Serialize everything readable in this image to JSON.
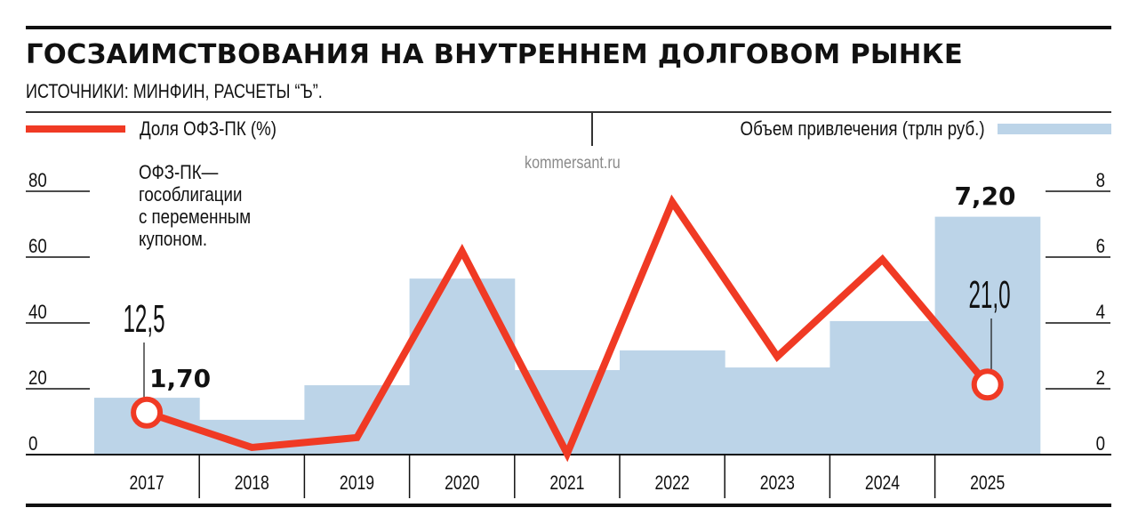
{
  "header": {
    "title": "ГОСЗАИМСТВОВАНИЯ НА ВНУТРЕННЕМ ДОЛГОВОМ РЫНКЕ",
    "subtitle": "ИСТОЧНИКИ: МИНФИН, РАСЧЕТЫ “Ъ”."
  },
  "legend": {
    "line_label": "Доля ОФЗ-ПК (%)",
    "bar_label": "Объем привлечения (трлн руб.)"
  },
  "watermark": "kommersant.ru",
  "note": "ОФЗ-ПК—\nгособлигации\nс переменным\nкупоном.",
  "axes": {
    "left_ticks": [
      "0",
      "20",
      "40",
      "60",
      "80"
    ],
    "right_ticks": [
      "0",
      "2",
      "4",
      "6",
      "8"
    ]
  },
  "callouts": {
    "first_line": "12,5",
    "first_bar": "1,70",
    "last_line": "21,0",
    "last_bar": "7,20"
  },
  "colors": {
    "line": "#f03a24",
    "bar": "#bcd4e8",
    "text": "#111111",
    "watermark": "#8a8a8a"
  },
  "chart_data": {
    "type": "bar",
    "title": "ГОСЗАИМСТВОВАНИЯ НА ВНУТРЕННЕМ ДОЛГОВОМ РЫНКЕ",
    "subtitle": "ИСТОЧНИКИ: МИНФИН, РАСЧЕТЫ “Ъ”.",
    "categories": [
      "2017",
      "2018",
      "2019",
      "2020",
      "2021",
      "2022",
      "2023",
      "2024",
      "2025"
    ],
    "series": [
      {
        "name": "Объем привлечения (трлн руб.)",
        "type": "bar",
        "axis": "right",
        "color": "#bcd4e8",
        "values": [
          1.7,
          1.03,
          2.08,
          5.32,
          2.54,
          3.14,
          2.62,
          4.03,
          7.2
        ]
      },
      {
        "name": "Доля ОФЗ-ПК (%)",
        "type": "line",
        "axis": "left",
        "color": "#f03a24",
        "values": [
          12.5,
          1.9,
          4.9,
          61.5,
          0.0,
          76.5,
          29.5,
          59.0,
          21.0
        ]
      }
    ],
    "xlabel": "",
    "ylabel_left": "Доля ОФЗ-ПК (%)",
    "ylabel_right": "Объем привлечения (трлн руб.)",
    "ylim_left": [
      0,
      80
    ],
    "ylim_right": [
      0,
      8
    ],
    "left_ticks": [
      0,
      20,
      40,
      60,
      80
    ],
    "right_ticks": [
      0,
      2,
      4,
      6,
      8
    ],
    "annotations": [
      {
        "category": "2017",
        "series": "Доля ОФЗ-ПК (%)",
        "text": "12,5"
      },
      {
        "category": "2017",
        "series": "Объем привлечения (трлн руб.)",
        "text": "1,70"
      },
      {
        "category": "2025",
        "series": "Доля ОФЗ-ПК (%)",
        "text": "21,0"
      },
      {
        "category": "2025",
        "series": "Объем привлечения (трлн руб.)",
        "text": "7,20"
      },
      {
        "text": "ОФЗ-ПК—гособлигации с переменным купоном."
      }
    ],
    "legend_position": "top",
    "grid": false
  }
}
